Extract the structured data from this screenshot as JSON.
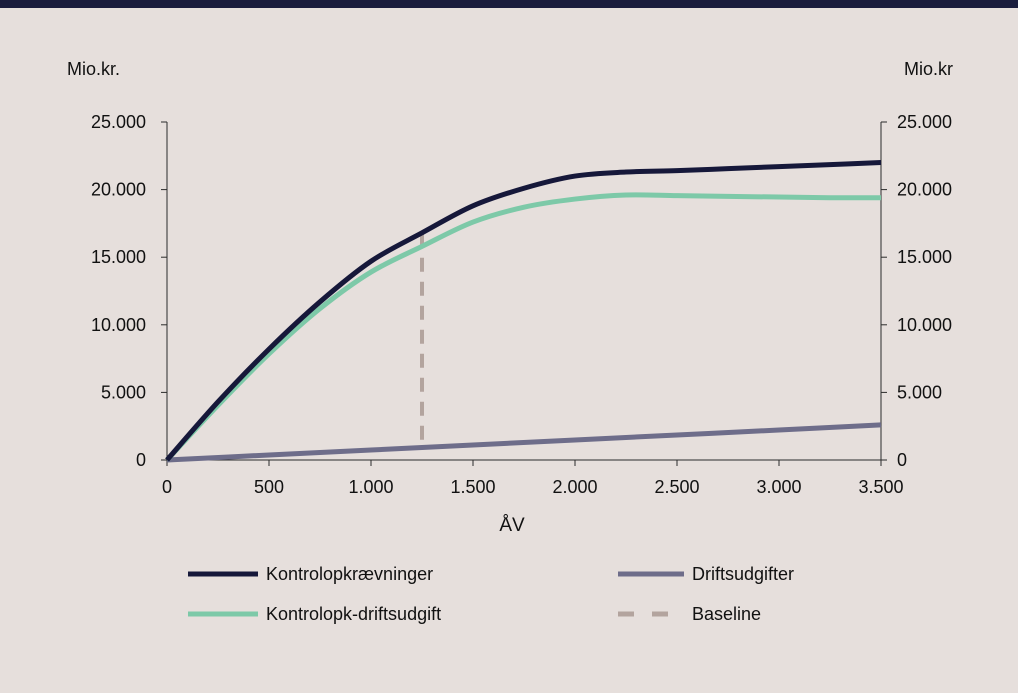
{
  "chart_data": {
    "type": "line",
    "xlabel": "ÅV",
    "ylabel_left": "Mio.kr.",
    "ylabel_right": "Mio.kr",
    "xlim": [
      0,
      3500
    ],
    "ylim": [
      0,
      25000
    ],
    "x_ticks": [
      0,
      500,
      1000,
      1500,
      2000,
      2500,
      3000,
      3500
    ],
    "x_tick_labels": [
      "0",
      "500",
      "1.000",
      "1.500",
      "2.000",
      "2.500",
      "3.000",
      "3.500"
    ],
    "y_ticks": [
      0,
      5000,
      10000,
      15000,
      20000,
      25000
    ],
    "y_tick_labels": [
      "0",
      "5.000",
      "10.000",
      "15.000",
      "20.000",
      "25.000"
    ],
    "grid": false,
    "legend_position": "bottom",
    "series": [
      {
        "name": "Kontrolopkrævninger",
        "color": "#16183a",
        "style": "solid",
        "x": [
          0,
          250,
          500,
          750,
          1000,
          1250,
          1500,
          1750,
          2000,
          2250,
          2500,
          2750,
          3000,
          3250,
          3500
        ],
        "y": [
          0,
          4300,
          8200,
          11700,
          14700,
          16800,
          18800,
          20100,
          21000,
          21300,
          21400,
          21550,
          21700,
          21850,
          22000
        ]
      },
      {
        "name": "Driftsudgifter",
        "color": "#6e6d8a",
        "style": "solid",
        "x": [
          0,
          500,
          1000,
          1500,
          2000,
          2500,
          3000,
          3500
        ],
        "y": [
          0,
          370,
          740,
          1110,
          1480,
          1850,
          2220,
          2600
        ]
      },
      {
        "name": "Kontrolopk-driftsudgift",
        "color": "#7dc9a8",
        "style": "solid",
        "x": [
          0,
          250,
          500,
          750,
          1000,
          1250,
          1500,
          1750,
          2000,
          2250,
          2500,
          2750,
          3000,
          3250,
          3500
        ],
        "y": [
          0,
          4050,
          7850,
          11200,
          13900,
          15800,
          17600,
          18700,
          19300,
          19600,
          19550,
          19500,
          19450,
          19400,
          19400
        ]
      },
      {
        "name": "Baseline",
        "color": "#b3a49e",
        "style": "dashed",
        "x": [
          1250,
          1250
        ],
        "y": [
          1500,
          16700
        ]
      }
    ]
  }
}
